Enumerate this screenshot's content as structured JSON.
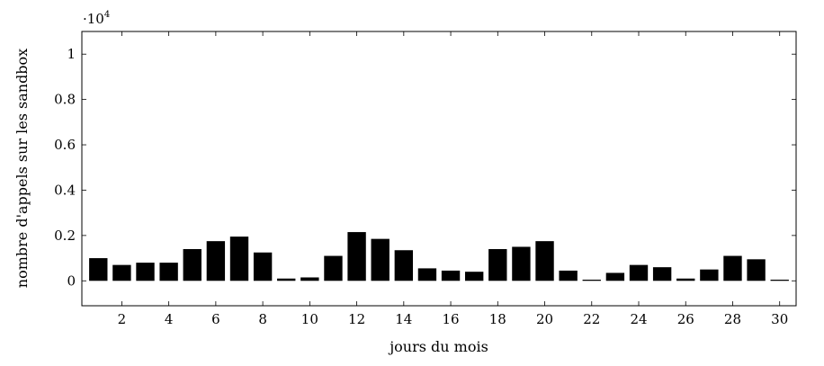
{
  "chart_data": {
    "type": "bar",
    "xlabel": "jours du mois",
    "ylabel": "nombre d'appels sur les sandbox",
    "y_multiplier": {
      "prefix": "·10",
      "exponent": "4"
    },
    "x": [
      1,
      2,
      3,
      4,
      5,
      6,
      7,
      8,
      9,
      10,
      11,
      12,
      13,
      14,
      15,
      16,
      17,
      18,
      19,
      20,
      21,
      22,
      23,
      24,
      25,
      26,
      27,
      28,
      29,
      30
    ],
    "values": [
      1000,
      700,
      800,
      800,
      1400,
      1750,
      1950,
      1250,
      100,
      150,
      1100,
      2150,
      1850,
      1350,
      550,
      450,
      400,
      1400,
      1500,
      1750,
      450,
      50,
      350,
      700,
      600,
      100,
      500,
      1100,
      950,
      50
    ],
    "xticks": [
      2,
      4,
      6,
      8,
      10,
      12,
      14,
      16,
      18,
      20,
      22,
      24,
      26,
      28,
      30
    ],
    "yticks": [
      0,
      2000,
      4000,
      6000,
      8000,
      10000
    ],
    "ytick_labels": [
      "0",
      "0.2",
      "0.4",
      "0.6",
      "0.8",
      "1"
    ],
    "xlim": [
      0.3,
      30.7
    ],
    "ylim": [
      -1100,
      11000
    ],
    "bar_color": "#000000",
    "grid": false
  }
}
